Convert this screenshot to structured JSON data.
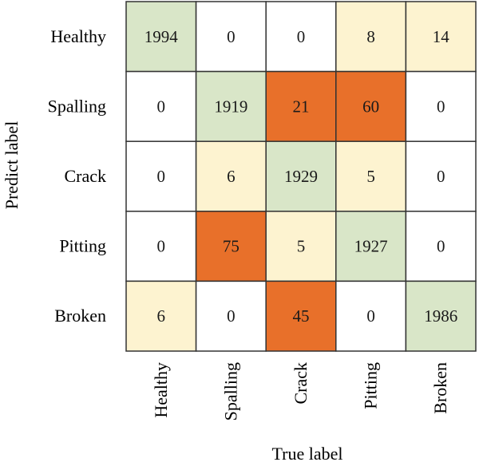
{
  "chart_data": {
    "type": "heatmap",
    "title": "",
    "xlabel": "True label",
    "ylabel": "Predict label",
    "row_labels": [
      "Healthy",
      "Spalling",
      "Crack",
      "Pitting",
      "Broken"
    ],
    "col_labels": [
      "Healthy",
      "Spalling",
      "Crack",
      "Pitting",
      "Broken"
    ],
    "values": [
      [
        1994,
        0,
        0,
        8,
        14
      ],
      [
        0,
        1919,
        21,
        60,
        0
      ],
      [
        0,
        6,
        1929,
        5,
        0
      ],
      [
        0,
        75,
        5,
        1927,
        0
      ],
      [
        6,
        0,
        45,
        0,
        1986
      ]
    ],
    "colors": {
      "diagonal": "#d9e6c8",
      "minor_error": "#fdf3d0",
      "major_error": "#e8702a",
      "zero": "#ffffff",
      "grid": "#333333"
    }
  }
}
